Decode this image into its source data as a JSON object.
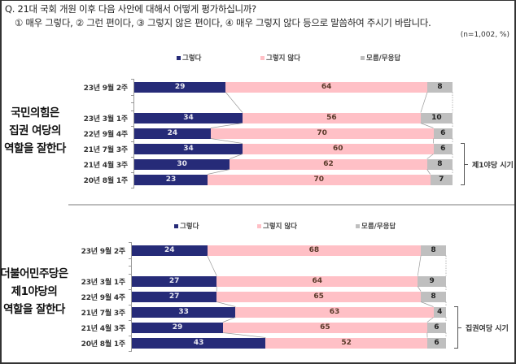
{
  "question": {
    "line1": "Q. 21대 국회 개원 이후 다음 사안에 대해서 어떻게 평가하십니까?",
    "line2": "① 매우 그렇다, ② 그런 편이다, ③ 그렇지 않은 편이다, ④ 매우 그렇지 않다 등으로 말씀하여 주시기 바랍니다.",
    "note": "(n=1,002,  %)"
  },
  "colors": {
    "yes": "#262b78",
    "no": "#ffc0c6",
    "dk": "#bfbfbf"
  },
  "chart_data": [
    {
      "type": "bar",
      "stacked": true,
      "orientation": "horizontal",
      "title": "국민의힘은 집권 여당의 역할을 잘한다",
      "title_lines": [
        "국민의힘은",
        "집권 여당의",
        "역할을 잘한다"
      ],
      "categories": [
        "23년 9월 2주",
        "23년 3월 1주",
        "22년 9월 4주",
        "21년 7월 3주",
        "21년 4월 3주",
        "20년 8월 1주"
      ],
      "series": [
        {
          "name": "그렇다",
          "values": [
            29,
            34,
            24,
            34,
            30,
            23
          ]
        },
        {
          "name": "그렇지 않다",
          "values": [
            64,
            56,
            70,
            60,
            62,
            70
          ]
        },
        {
          "name": "모름/무응답",
          "values": [
            8,
            10,
            6,
            6,
            8,
            7
          ]
        }
      ],
      "legend": [
        "그렇다",
        "그렇지 않다",
        "모름/무응답"
      ],
      "legend_position": "top",
      "annotation": {
        "label": "제1야당 시기",
        "spans": [
          "21년 7월 3주",
          "21년 4월 3주",
          "20년 8월 1주"
        ]
      },
      "xlim": [
        0,
        100
      ],
      "grid": false
    },
    {
      "type": "bar",
      "stacked": true,
      "orientation": "horizontal",
      "title": "더불어민주당은 제1야당의 역할을 잘한다",
      "title_lines": [
        "더불어민주당은",
        "제1야당의",
        "역할을 잘한다"
      ],
      "categories": [
        "23년 9월 2주",
        "23년 3월 1주",
        "22년 9월 4주",
        "21년 7월 3주",
        "21년 4월 3주",
        "20년 8월 1주"
      ],
      "series": [
        {
          "name": "그렇다",
          "values": [
            24,
            27,
            27,
            33,
            29,
            43
          ]
        },
        {
          "name": "그렇지 않다",
          "values": [
            68,
            64,
            65,
            63,
            65,
            52
          ]
        },
        {
          "name": "모름/무응답",
          "values": [
            8,
            9,
            8,
            4,
            6,
            6
          ]
        }
      ],
      "legend": [
        "그렇다",
        "그렇지 않다",
        "모름/무응답"
      ],
      "legend_position": "top",
      "annotation": {
        "label": "집권여당 시기",
        "spans": [
          "21년 7월 3주",
          "21년 4월 3주",
          "20년 8월 1주"
        ]
      },
      "xlim": [
        0,
        100
      ],
      "grid": false
    }
  ]
}
